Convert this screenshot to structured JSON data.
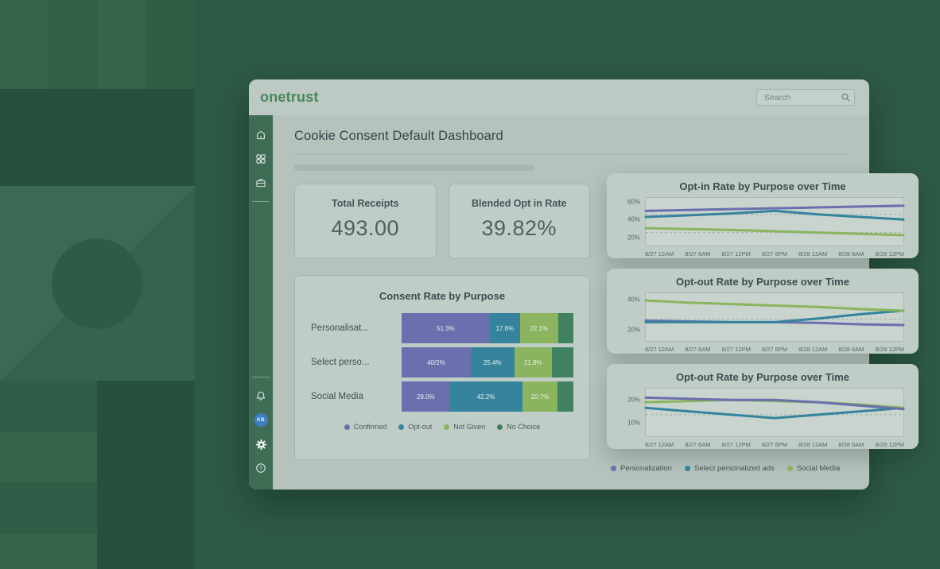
{
  "header": {
    "logo": "onetrust",
    "search_placeholder": "Search"
  },
  "page": {
    "title": "Cookie Consent Default Dashboard"
  },
  "sidebar": {
    "avatar_initials": "KB",
    "avatar_color": "#3d7fc1",
    "help_glyph": "?"
  },
  "icons": {
    "search": "magnifier",
    "home": "house",
    "apps": "grid-2x2",
    "inbox": "briefcase",
    "notifications": "bell",
    "settings": "gear",
    "help": "question-circle"
  },
  "stat_cards": [
    {
      "label": "Total Receipts",
      "value": "493.00"
    },
    {
      "label": "Blended Opt in Rate",
      "value": "39.82%"
    }
  ],
  "colors": {
    "purple": "#6a6fae",
    "teal": "#35839d",
    "light_green": "#8ab45e",
    "dark_green": "#3f8160",
    "sidebar": "#3e6c55",
    "logo_green": "#47875e"
  },
  "chart_data": [
    {
      "type": "bar",
      "orientation": "horizontal-stacked",
      "title": "Consent Rate by Purpose",
      "categories": [
        "Personalisat...",
        "Select perso...",
        "Social Media"
      ],
      "series": [
        {
          "name": "Confirmed",
          "color": "#6a6fae",
          "values": [
            51.3,
            40.2,
            28.0
          ],
          "labels": [
            "51.3%",
            "40/2%",
            "28.0%"
          ]
        },
        {
          "name": "Opt-out",
          "color": "#35839d",
          "values": [
            17.6,
            25.4,
            42.2
          ],
          "labels": [
            "17.6%",
            "25.4%",
            "42.2%"
          ]
        },
        {
          "name": "Not Given",
          "color": "#8ab45e",
          "values": [
            22.1,
            21.9,
            20.7
          ],
          "labels": [
            "22.1%",
            "21.9%",
            "20.7%"
          ]
        },
        {
          "name": "No Choice",
          "color": "#3f8160",
          "values": [
            9.0,
            12.5,
            9.1
          ],
          "labels": [
            "",
            "",
            ""
          ]
        }
      ],
      "legend_position": "bottom"
    },
    {
      "type": "line",
      "title": "Opt-in Rate by Purpose over Time",
      "x": [
        "8/27 12AM",
        "8/27 6AM",
        "8/27 12PM",
        "8/27 6PM",
        "8/28 12AM",
        "8/28 6AM",
        "8/28 12PM"
      ],
      "ylim": [
        10,
        65
      ],
      "yticks": [
        20,
        40,
        60
      ],
      "ref_lines": [
        46,
        25
      ],
      "grid": "dashed-reference",
      "series": [
        {
          "name": "Social Media",
          "color": "#8ab45e",
          "values": [
            30,
            29,
            28,
            26.5,
            25,
            23.5,
            22
          ]
        },
        {
          "name": "Select personalized ads",
          "color": "#35839d",
          "values": [
            43,
            45,
            47,
            50,
            46,
            43,
            40
          ]
        },
        {
          "name": "Personalization",
          "color": "#6a6fae",
          "values": [
            50,
            51,
            52,
            53,
            54,
            55,
            56
          ]
        }
      ]
    },
    {
      "type": "line",
      "title": "Opt-out Rate by Purpose over Time",
      "x": [
        "8/27 12AM",
        "8/27 6AM",
        "8/27 12PM",
        "8/27 6PM",
        "8/28 12AM",
        "8/28 6AM",
        "8/28 12PM"
      ],
      "ylim": [
        12,
        45
      ],
      "yticks": [
        20,
        40
      ],
      "ref_lines": [
        27
      ],
      "grid": "dashed-reference",
      "series": [
        {
          "name": "Personalization",
          "color": "#6a6fae",
          "values": [
            26,
            25.5,
            25,
            25,
            24.5,
            23.5,
            23
          ]
        },
        {
          "name": "Select personalized ads",
          "color": "#35839d",
          "values": [
            25,
            25,
            25,
            25,
            27.5,
            30.5,
            33
          ]
        },
        {
          "name": "Social Media",
          "color": "#8ab45e",
          "values": [
            40,
            38.5,
            37.5,
            36.5,
            35.5,
            34,
            33
          ]
        }
      ]
    },
    {
      "type": "line",
      "title": "Opt-out Rate by Purpose over Time",
      "x": [
        "8/27 12AM",
        "8/27 6AM",
        "8/27 12PM",
        "8/27 6PM",
        "8/28 12AM",
        "8/28 6AM",
        "8/28 12PM"
      ],
      "ylim": [
        4,
        25
      ],
      "yticks": [
        10,
        20
      ],
      "ref_lines": [
        13.5
      ],
      "grid": "dashed-reference",
      "series": [
        {
          "name": "Select personalized ads",
          "color": "#35839d",
          "values": [
            16.5,
            15,
            13.5,
            12,
            13.5,
            15,
            16.5
          ]
        },
        {
          "name": "Social Media",
          "color": "#8ab45e",
          "values": [
            19,
            19.5,
            20,
            19.5,
            19,
            18,
            16.5
          ]
        },
        {
          "name": "Personalization",
          "color": "#6a6fae",
          "values": [
            21,
            20.5,
            20,
            20,
            19,
            17.5,
            16
          ]
        }
      ]
    }
  ],
  "legend_bottom": [
    {
      "label": "Personalization",
      "color": "#6a6fae"
    },
    {
      "label": "Select personalized ads",
      "color": "#35839d"
    },
    {
      "label": "Social Media",
      "color": "#8ab45e"
    }
  ]
}
